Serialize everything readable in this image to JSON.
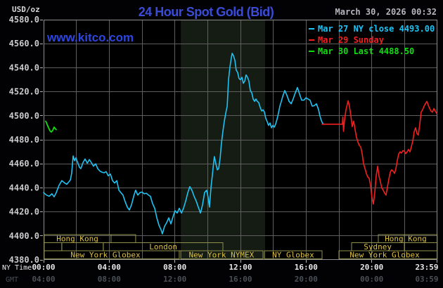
{
  "page": {
    "units_label": "USD/oz",
    "title": "24 Hour Spot Gold (Bid)",
    "datetime": "March 30, 2026 00:32",
    "watermark": "www.kitco.com"
  },
  "colors": {
    "page_bg": "#020205",
    "plot_bg": "#000000",
    "title": "#3a4cd6",
    "watermark": "#2d46e0",
    "datetime": "#b6b6be",
    "grid": "#5e5e5e",
    "frame": "#8c8c8c",
    "tick_mark": "#b5b5b5",
    "band": "#141c13",
    "y_tick_text": "#cbcbcb",
    "ny_time_text": "#e8e8e8",
    "gmt_text": "#4a5055",
    "session_border": "#90904c",
    "session_label": "#ddc145"
  },
  "legend": {
    "items": [
      {
        "label": "Mar 27 NY close 4493.00",
        "color": "#1fc3f3"
      },
      {
        "label": "Mar 29 Sunday",
        "color": "#f22020"
      },
      {
        "label": "Mar 30 Last 4488.50",
        "color": "#12dd12"
      }
    ]
  },
  "chart_data": {
    "type": "line",
    "title": "24 Hour Spot Gold (Bid)",
    "x_axis": {
      "label": "NY Time",
      "secondary_label": "GMT",
      "range_hours": [
        0,
        24
      ],
      "ticks": [
        {
          "t": 0,
          "ny": "00:00",
          "gmt": "04:00"
        },
        {
          "t": 4,
          "ny": "04:00",
          "gmt": "08:00"
        },
        {
          "t": 8,
          "ny": "08:00",
          "gmt": "12:00"
        },
        {
          "t": 12,
          "ny": "12:00",
          "gmt": "16:00"
        },
        {
          "t": 16,
          "ny": "16:00",
          "gmt": "20:00"
        },
        {
          "t": 20,
          "ny": "20:00",
          "gmt": "00:00"
        },
        {
          "t": 23.983,
          "ny": "23:59",
          "gmt": "03:59"
        }
      ]
    },
    "y_axis": {
      "label": "USD/oz",
      "min": 4380,
      "max": 4580,
      "tick_step": 20,
      "tick_labels": [
        "4580.0",
        "4560.0",
        "4540.0",
        "4520.0",
        "4500.0",
        "4480.0",
        "4460.0",
        "4440.0",
        "4420.0",
        "4400.0",
        "4380.0"
      ]
    },
    "grid_x_step_hours": 2,
    "highlight_band_hours": [
      8.36,
      13.5
    ],
    "series": [
      {
        "id": "mar-27-ny-close",
        "name": "Mar 27 NY close 4493.00",
        "color": "#1fc3f3",
        "width": 1.6,
        "points": [
          [
            0,
            4436
          ],
          [
            0.17,
            4434
          ],
          [
            0.34,
            4433
          ],
          [
            0.51,
            4435
          ],
          [
            0.64,
            4432.5
          ],
          [
            0.77,
            4436
          ],
          [
            0.94,
            4442
          ],
          [
            1.11,
            4446
          ],
          [
            1.29,
            4444
          ],
          [
            1.41,
            4443
          ],
          [
            1.54,
            4445
          ],
          [
            1.63,
            4446.5
          ],
          [
            1.71,
            4452
          ],
          [
            1.8,
            4466.5
          ],
          [
            1.89,
            4462.5
          ],
          [
            1.97,
            4465
          ],
          [
            2.06,
            4461.5
          ],
          [
            2.19,
            4457
          ],
          [
            2.27,
            4456
          ],
          [
            2.4,
            4461
          ],
          [
            2.53,
            4464
          ],
          [
            2.66,
            4460.5
          ],
          [
            2.79,
            4463.5
          ],
          [
            2.91,
            4461
          ],
          [
            3.04,
            4458
          ],
          [
            3.17,
            4460
          ],
          [
            3.3,
            4456
          ],
          [
            3.43,
            4454
          ],
          [
            3.56,
            4453
          ],
          [
            3.69,
            4452.5
          ],
          [
            3.81,
            4453.5
          ],
          [
            3.94,
            4450
          ],
          [
            4.07,
            4451.5
          ],
          [
            4.2,
            4446
          ],
          [
            4.33,
            4444
          ],
          [
            4.46,
            4446
          ],
          [
            4.59,
            4438
          ],
          [
            4.71,
            4436
          ],
          [
            4.84,
            4434
          ],
          [
            4.97,
            4428.5
          ],
          [
            5.1,
            4424
          ],
          [
            5.23,
            4421.5
          ],
          [
            5.36,
            4426
          ],
          [
            5.49,
            4433
          ],
          [
            5.61,
            4438
          ],
          [
            5.74,
            4434
          ],
          [
            5.87,
            4436
          ],
          [
            6,
            4436.5
          ],
          [
            6.13,
            4435
          ],
          [
            6.26,
            4435.5
          ],
          [
            6.39,
            4434
          ],
          [
            6.51,
            4433
          ],
          [
            6.64,
            4427
          ],
          [
            6.77,
            4423
          ],
          [
            6.9,
            4415
          ],
          [
            7.03,
            4409
          ],
          [
            7.16,
            4405
          ],
          [
            7.24,
            4401.7
          ],
          [
            7.37,
            4408
          ],
          [
            7.5,
            4411
          ],
          [
            7.63,
            4415
          ],
          [
            7.76,
            4410
          ],
          [
            7.89,
            4416
          ],
          [
            8.01,
            4421
          ],
          [
            8.14,
            4419
          ],
          [
            8.27,
            4423
          ],
          [
            8.4,
            4419
          ],
          [
            8.53,
            4423
          ],
          [
            8.66,
            4429
          ],
          [
            8.79,
            4436
          ],
          [
            8.91,
            4441
          ],
          [
            9.04,
            4438
          ],
          [
            9.17,
            4433
          ],
          [
            9.3,
            4429
          ],
          [
            9.43,
            4424
          ],
          [
            9.56,
            4419
          ],
          [
            9.69,
            4426
          ],
          [
            9.81,
            4436
          ],
          [
            9.94,
            4438
          ],
          [
            10.03,
            4432
          ],
          [
            10.11,
            4424
          ],
          [
            10.2,
            4440
          ],
          [
            10.29,
            4451
          ],
          [
            10.37,
            4462
          ],
          [
            10.41,
            4466
          ],
          [
            10.5,
            4460
          ],
          [
            10.59,
            4455
          ],
          [
            10.67,
            4456
          ],
          [
            10.76,
            4465
          ],
          [
            10.84,
            4477
          ],
          [
            10.93,
            4487
          ],
          [
            11.01,
            4495
          ],
          [
            11.1,
            4502
          ],
          [
            11.19,
            4508
          ],
          [
            11.27,
            4530
          ],
          [
            11.36,
            4541
          ],
          [
            11.44,
            4548
          ],
          [
            11.49,
            4552
          ],
          [
            11.57,
            4550
          ],
          [
            11.66,
            4546
          ],
          [
            11.74,
            4538
          ],
          [
            11.83,
            4536
          ],
          [
            11.91,
            4531
          ],
          [
            12,
            4530
          ],
          [
            12.09,
            4532
          ],
          [
            12.17,
            4527
          ],
          [
            12.26,
            4529
          ],
          [
            12.34,
            4534
          ],
          [
            12.43,
            4532
          ],
          [
            12.51,
            4529
          ],
          [
            12.6,
            4521
          ],
          [
            12.69,
            4519
          ],
          [
            12.77,
            4514
          ],
          [
            12.86,
            4512
          ],
          [
            12.94,
            4514
          ],
          [
            13.03,
            4512
          ],
          [
            13.11,
            4511
          ],
          [
            13.2,
            4507
          ],
          [
            13.29,
            4504
          ],
          [
            13.37,
            4505
          ],
          [
            13.46,
            4503
          ],
          [
            13.54,
            4498
          ],
          [
            13.63,
            4495
          ],
          [
            13.71,
            4492
          ],
          [
            13.8,
            4494
          ],
          [
            13.89,
            4490
          ],
          [
            13.97,
            4492
          ],
          [
            14.06,
            4490.5
          ],
          [
            14.14,
            4493
          ],
          [
            14.23,
            4497
          ],
          [
            14.31,
            4502
          ],
          [
            14.4,
            4508
          ],
          [
            14.49,
            4512
          ],
          [
            14.57,
            4516
          ],
          [
            14.7,
            4521
          ],
          [
            14.83,
            4517
          ],
          [
            14.96,
            4512
          ],
          [
            15.09,
            4510
          ],
          [
            15.21,
            4514
          ],
          [
            15.34,
            4519
          ],
          [
            15.47,
            4523.5
          ],
          [
            15.6,
            4518
          ],
          [
            15.73,
            4513
          ],
          [
            15.86,
            4513
          ],
          [
            15.99,
            4515
          ],
          [
            16.11,
            4514
          ],
          [
            16.24,
            4513
          ],
          [
            16.37,
            4508
          ],
          [
            16.5,
            4508.5
          ],
          [
            16.63,
            4510
          ],
          [
            16.76,
            4505
          ],
          [
            16.84,
            4500
          ],
          [
            16.93,
            4496
          ],
          [
            17.01,
            4493.5
          ],
          [
            17.1,
            4493
          ]
        ]
      },
      {
        "id": "mar-29-sunday",
        "name": "Mar 29 Sunday",
        "color": "#f22020",
        "width": 1.6,
        "points": [
          [
            16.97,
            4493
          ],
          [
            18,
            4493
          ],
          [
            18.21,
            4493
          ],
          [
            18.24,
            4499
          ],
          [
            18.28,
            4487
          ],
          [
            18.34,
            4496
          ],
          [
            18.43,
            4505
          ],
          [
            18.56,
            4512.5
          ],
          [
            18.64,
            4508
          ],
          [
            18.73,
            4500
          ],
          [
            18.81,
            4491
          ],
          [
            18.9,
            4495.5
          ],
          [
            18.99,
            4488
          ],
          [
            19.07,
            4482
          ],
          [
            19.16,
            4478
          ],
          [
            19.24,
            4475.5
          ],
          [
            19.33,
            4474
          ],
          [
            19.41,
            4469
          ],
          [
            19.5,
            4460
          ],
          [
            19.59,
            4456
          ],
          [
            19.67,
            4452
          ],
          [
            19.76,
            4449
          ],
          [
            19.84,
            4448
          ],
          [
            19.93,
            4442
          ],
          [
            20.01,
            4432
          ],
          [
            20.1,
            4426.5
          ],
          [
            20.19,
            4437
          ],
          [
            20.27,
            4450
          ],
          [
            20.36,
            4458
          ],
          [
            20.44,
            4450
          ],
          [
            20.53,
            4445
          ],
          [
            20.61,
            4440
          ],
          [
            20.7,
            4438
          ],
          [
            20.79,
            4435.5
          ],
          [
            20.87,
            4434
          ],
          [
            20.96,
            4441
          ],
          [
            21.04,
            4447
          ],
          [
            21.13,
            4453
          ],
          [
            21.21,
            4455
          ],
          [
            21.3,
            4454
          ],
          [
            21.39,
            4452
          ],
          [
            21.47,
            4456
          ],
          [
            21.56,
            4463
          ],
          [
            21.64,
            4468
          ],
          [
            21.73,
            4470
          ],
          [
            21.81,
            4469
          ],
          [
            21.9,
            4471
          ],
          [
            21.99,
            4470.5
          ],
          [
            22.07,
            4468.5
          ],
          [
            22.16,
            4470
          ],
          [
            22.24,
            4472
          ],
          [
            22.33,
            4470
          ],
          [
            22.41,
            4474
          ],
          [
            22.5,
            4479
          ],
          [
            22.59,
            4487
          ],
          [
            22.67,
            4490
          ],
          [
            22.76,
            4485
          ],
          [
            22.84,
            4484
          ],
          [
            22.93,
            4493
          ],
          [
            23.01,
            4503
          ],
          [
            23.1,
            4505
          ],
          [
            23.19,
            4508
          ],
          [
            23.27,
            4510
          ],
          [
            23.36,
            4512
          ],
          [
            23.44,
            4509
          ],
          [
            23.53,
            4506
          ],
          [
            23.61,
            4504
          ],
          [
            23.7,
            4503
          ],
          [
            23.79,
            4506
          ],
          [
            23.87,
            4504
          ],
          [
            23.96,
            4502
          ]
        ]
      },
      {
        "id": "mar-30-last",
        "name": "Mar 30 Last 4488.50",
        "color": "#12dd12",
        "width": 1.8,
        "points": [
          [
            0.13,
            4495.5
          ],
          [
            0.21,
            4493
          ],
          [
            0.3,
            4490
          ],
          [
            0.39,
            4487.5
          ],
          [
            0.47,
            4486.5
          ],
          [
            0.56,
            4488
          ],
          [
            0.64,
            4490.5
          ],
          [
            0.73,
            4489
          ],
          [
            0.77,
            4488.5
          ]
        ]
      }
    ],
    "sessions": {
      "rows": [
        {
          "boxes": [
            {
              "t0": 0.04,
              "t1": 5.61,
              "label": "Hong Kong",
              "label_t": 2.06,
              "dividers": [
                4.11
              ]
            },
            {
              "t0": 20.4,
              "t1": 23.99,
              "label": "Hong Kong",
              "label_t": 22.07,
              "dividers": [
                21.99
              ]
            }
          ]
        },
        {
          "boxes": [
            {
              "t0": 0.04,
              "t1": 1.11
            },
            {
              "t0": 1.11,
              "t1": 3.64
            },
            {
              "t0": 3.64,
              "t1": 10.93,
              "label": "London",
              "label_t": 7.29
            },
            {
              "t0": 18.77,
              "t1": 21.99,
              "label": "Sydney",
              "label_t": 20.36
            },
            {
              "t0": 21.99,
              "t1": 23.99
            }
          ]
        },
        {
          "boxes": [
            {
              "t0": 0.04,
              "t1": 8.27,
              "label": "New York Globex",
              "label_t": 3.77
            },
            {
              "t0": 8.36,
              "t1": 13.37,
              "label": "New York NYMEX",
              "label_t": 10.84
            },
            {
              "t0": 13.46,
              "t1": 16.97,
              "label": "NY Globex",
              "label_t": 15.21
            },
            {
              "t0": 18,
              "t1": 23.99,
              "label": "New York Globex",
              "label_t": 20.79
            }
          ]
        }
      ]
    }
  }
}
